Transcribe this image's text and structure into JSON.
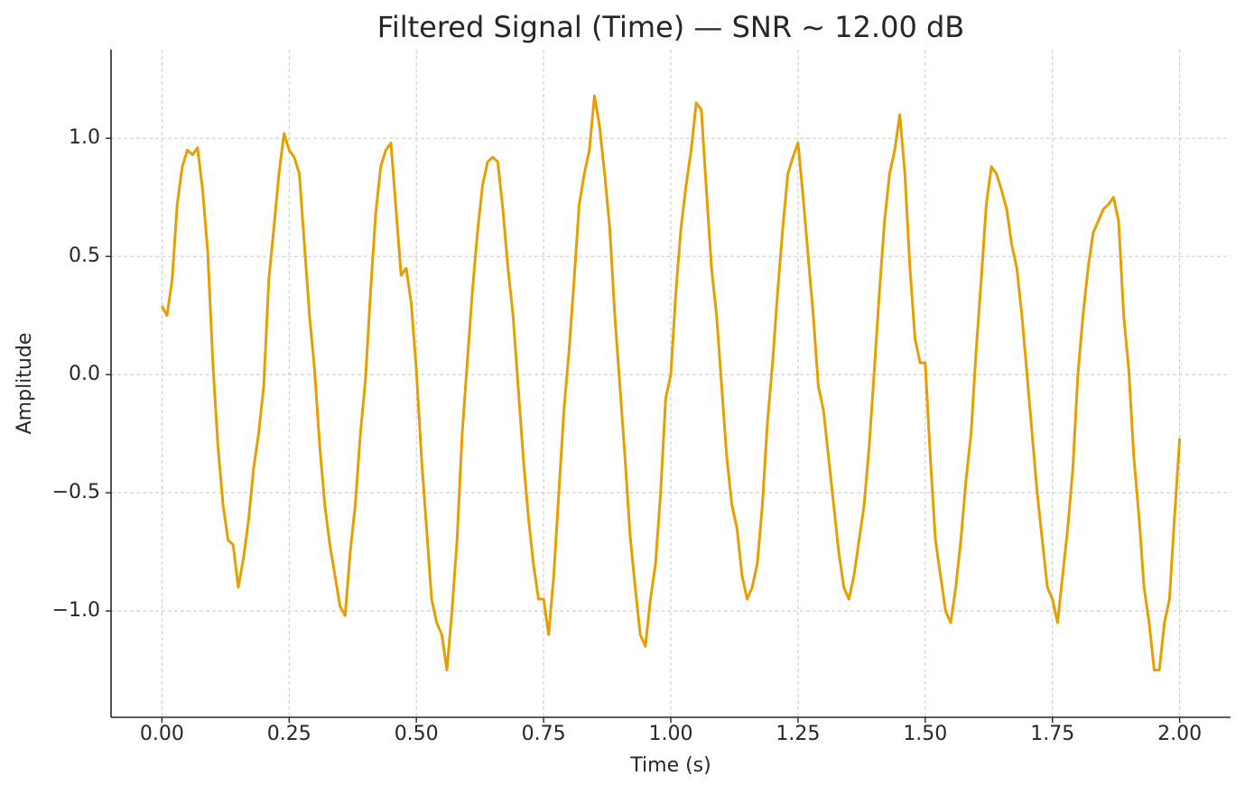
{
  "chart_data": {
    "type": "line",
    "title": "Filtered Signal (Time) — SNR ~ 12.00 dB",
    "x_label": "Time (s)",
    "y_label": "Amplitude",
    "color": "#e69f00",
    "grid": true,
    "xlim": [
      -0.1,
      2.1
    ],
    "ylim": [
      -1.45,
      1.375
    ],
    "xticks": [
      {
        "value": 0,
        "label": "0.00"
      },
      {
        "value": 0.25,
        "label": "0.25"
      },
      {
        "value": 0.5,
        "label": "0.50"
      },
      {
        "value": 0.75,
        "label": "0.75"
      },
      {
        "value": 1,
        "label": "1.00"
      },
      {
        "value": 1.25,
        "label": "1.25"
      },
      {
        "value": 1.5,
        "label": "1.50"
      },
      {
        "value": 1.75,
        "label": "1.75"
      },
      {
        "value": 2,
        "label": "2.00"
      }
    ],
    "yticks": [
      {
        "value": -1,
        "label": "−1.0"
      },
      {
        "value": -0.5,
        "label": "−0.5"
      },
      {
        "value": 0,
        "label": "0.0"
      },
      {
        "value": 0.5,
        "label": "0.5"
      },
      {
        "value": 1,
        "label": "1.0"
      }
    ],
    "x": [
      0,
      0.01,
      0.02,
      0.03,
      0.04,
      0.05,
      0.06,
      0.07,
      0.08,
      0.09,
      0.1,
      0.11,
      0.12,
      0.13,
      0.14,
      0.15,
      0.16,
      0.17,
      0.18,
      0.19,
      0.2,
      0.21,
      0.22,
      0.23,
      0.24,
      0.25,
      0.26,
      0.27,
      0.28,
      0.29,
      0.3,
      0.31,
      0.32,
      0.33,
      0.34,
      0.35,
      0.36,
      0.37,
      0.38,
      0.39,
      0.4,
      0.41,
      0.42,
      0.43,
      0.44,
      0.45,
      0.46,
      0.47,
      0.48,
      0.49,
      0.5,
      0.51,
      0.52,
      0.53,
      0.54,
      0.55,
      0.56,
      0.57,
      0.58,
      0.59,
      0.6,
      0.61,
      0.62,
      0.63,
      0.64,
      0.65,
      0.66,
      0.67,
      0.68,
      0.69,
      0.7,
      0.71,
      0.72,
      0.73,
      0.74,
      0.75,
      0.76,
      0.77,
      0.78,
      0.79,
      0.8,
      0.81,
      0.82,
      0.83,
      0.84,
      0.85,
      0.86,
      0.87,
      0.88,
      0.89,
      0.9,
      0.91,
      0.92,
      0.93,
      0.94,
      0.95,
      0.96,
      0.97,
      0.98,
      0.99,
      1,
      1.01,
      1.02,
      1.03,
      1.04,
      1.05,
      1.06,
      1.07,
      1.08,
      1.09,
      1.1,
      1.11,
      1.12,
      1.13,
      1.14,
      1.15,
      1.16,
      1.17,
      1.18,
      1.19,
      1.2,
      1.21,
      1.22,
      1.23,
      1.24,
      1.25,
      1.26,
      1.27,
      1.28,
      1.29,
      1.3,
      1.31,
      1.32,
      1.33,
      1.34,
      1.35,
      1.36,
      1.37,
      1.38,
      1.39,
      1.4,
      1.41,
      1.42,
      1.43,
      1.44,
      1.45,
      1.46,
      1.47,
      1.48,
      1.49,
      1.5,
      1.51,
      1.52,
      1.53,
      1.54,
      1.55,
      1.56,
      1.57,
      1.58,
      1.59,
      1.6,
      1.61,
      1.62,
      1.63,
      1.64,
      1.65,
      1.66,
      1.67,
      1.68,
      1.69,
      1.7,
      1.71,
      1.72,
      1.73,
      1.74,
      1.75,
      1.76,
      1.77,
      1.78,
      1.79,
      1.8,
      1.81,
      1.82,
      1.83,
      1.84,
      1.85,
      1.86,
      1.87,
      1.88,
      1.89,
      1.9,
      1.91,
      1.92,
      1.93,
      1.94,
      1.95,
      1.96,
      1.97,
      1.98,
      1.99,
      2
    ],
    "values": [
      0.29,
      0.25,
      0.4,
      0.72,
      0.88,
      0.95,
      0.93,
      0.96,
      0.78,
      0.52,
      0.05,
      -0.3,
      -0.55,
      -0.7,
      -0.72,
      -0.9,
      -0.78,
      -0.62,
      -0.4,
      -0.25,
      -0.05,
      0.4,
      0.62,
      0.85,
      1.02,
      0.95,
      0.92,
      0.85,
      0.55,
      0.25,
      0.02,
      -0.3,
      -0.55,
      -0.72,
      -0.85,
      -0.98,
      -1.02,
      -0.75,
      -0.55,
      -0.25,
      -0.02,
      0.35,
      0.68,
      0.88,
      0.95,
      0.98,
      0.7,
      0.42,
      0.45,
      0.3,
      0.02,
      -0.35,
      -0.65,
      -0.95,
      -1.05,
      -1.1,
      -1.25,
      -1.0,
      -0.7,
      -0.25,
      0.05,
      0.35,
      0.6,
      0.8,
      0.9,
      0.92,
      0.9,
      0.7,
      0.45,
      0.25,
      -0.05,
      -0.35,
      -0.6,
      -0.8,
      -0.95,
      -0.95,
      -1.1,
      -0.85,
      -0.5,
      -0.15,
      0.1,
      0.4,
      0.72,
      0.85,
      0.95,
      1.18,
      1.05,
      0.85,
      0.62,
      0.25,
      -0.05,
      -0.35,
      -0.68,
      -0.9,
      -1.1,
      -1.15,
      -0.95,
      -0.8,
      -0.5,
      -0.1,
      0.0,
      0.35,
      0.62,
      0.8,
      0.95,
      1.15,
      1.12,
      0.78,
      0.45,
      0.25,
      -0.05,
      -0.35,
      -0.55,
      -0.65,
      -0.85,
      -0.95,
      -0.9,
      -0.8,
      -0.55,
      -0.2,
      0.05,
      0.35,
      0.62,
      0.85,
      0.92,
      0.98,
      0.75,
      0.5,
      0.25,
      -0.05,
      -0.15,
      -0.35,
      -0.55,
      -0.75,
      -0.9,
      -0.95,
      -0.85,
      -0.7,
      -0.55,
      -0.3,
      0.02,
      0.35,
      0.65,
      0.85,
      0.95,
      1.1,
      0.85,
      0.45,
      0.15,
      0.05,
      0.05,
      -0.35,
      -0.7,
      -0.85,
      -1.0,
      -1.05,
      -0.9,
      -0.7,
      -0.45,
      -0.25,
      0.1,
      0.4,
      0.72,
      0.88,
      0.85,
      0.78,
      0.7,
      0.55,
      0.45,
      0.25,
      0.0,
      -0.25,
      -0.5,
      -0.7,
      -0.9,
      -0.95,
      -1.05,
      -0.85,
      -0.65,
      -0.4,
      0.0,
      0.25,
      0.45,
      0.6,
      0.65,
      0.7,
      0.72,
      0.75,
      0.65,
      0.25,
      0.02,
      -0.35,
      -0.6,
      -0.9,
      -1.05,
      -1.25,
      -1.25,
      -1.05,
      -0.95,
      -0.6,
      -0.27
    ]
  }
}
